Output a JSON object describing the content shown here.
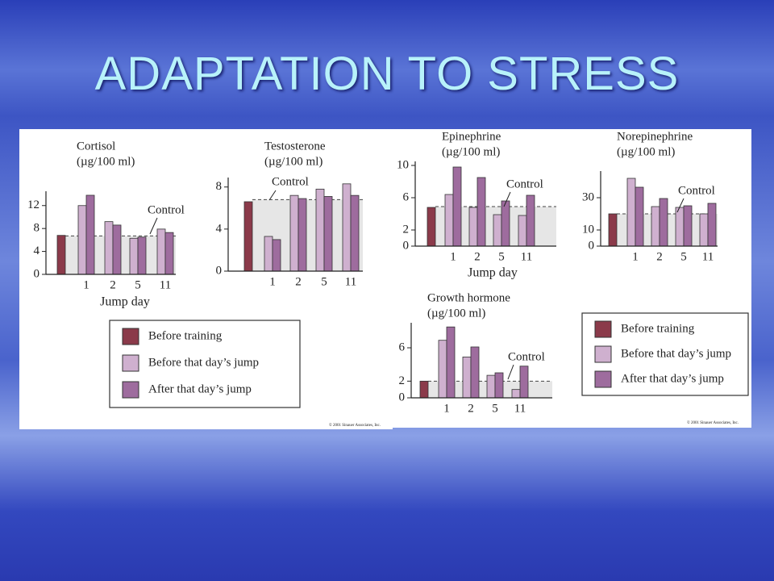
{
  "title": "ADAPTATION TO STRESS",
  "credits": [
    "© 2001 Sinauer Associates, Inc.",
    "© 2001 Sinauer Associates, Inc."
  ],
  "chart_data": [
    {
      "type": "bar",
      "title": "Cortisol",
      "subtitle": "(µg/100 ml)",
      "x_label": "Jump day",
      "legend": true,
      "categories": [
        null,
        "1",
        "2",
        "5",
        "11"
      ],
      "series": [
        {
          "name": "Before training",
          "color": "#8b3a4a",
          "values": [
            6.8,
            null,
            null,
            null,
            null
          ]
        },
        {
          "name": "Before that day’s jump",
          "color": "#cfb0cf",
          "values": [
            null,
            12,
            9.2,
            6.3,
            7.9
          ]
        },
        {
          "name": "After that day’s jump",
          "color": "#9e6c9e",
          "values": [
            null,
            13.8,
            8.6,
            6.5,
            7.3
          ]
        }
      ],
      "control": 6.7,
      "annotation": "Control",
      "ylim": [
        0,
        14.5
      ],
      "yticks": [
        0,
        4,
        8,
        12
      ]
    },
    {
      "type": "bar",
      "title": "Testosterone",
      "subtitle": "(µg/100 ml)",
      "categories": [
        null,
        "1",
        "2",
        "5",
        "11"
      ],
      "series": [
        {
          "color": "#8b3a4a",
          "values": [
            6.6,
            null,
            null,
            null,
            null
          ]
        },
        {
          "color": "#cfb0cf",
          "values": [
            null,
            3.3,
            7.2,
            7.8,
            8.3
          ]
        },
        {
          "color": "#9e6c9e",
          "values": [
            null,
            3.0,
            6.9,
            7.1,
            7.2
          ]
        }
      ],
      "control": 6.8,
      "annotation": "Control",
      "ylim": [
        0,
        8.9
      ],
      "yticks": [
        0,
        4,
        8
      ]
    },
    {
      "type": "bar",
      "title": "Epinephrine",
      "subtitle": "(µg/100 ml)",
      "x_label": "Jump day",
      "legend": true,
      "categories": [
        null,
        "1",
        "2",
        "5",
        "11"
      ],
      "series": [
        {
          "name": "Before training",
          "color": "#8b3a4a",
          "values": [
            4.8,
            null,
            null,
            null,
            null
          ]
        },
        {
          "name": "Before that day’s jump",
          "color": "#cfb0cf",
          "values": [
            null,
            6.4,
            4.8,
            3.9,
            3.8
          ]
        },
        {
          "name": "After that day’s jump",
          "color": "#9e6c9e",
          "values": [
            null,
            9.8,
            8.5,
            5.6,
            6.3
          ]
        }
      ],
      "control": 4.9,
      "annotation": "Control",
      "ylim": [
        0,
        10.5
      ],
      "yticks": [
        0,
        2,
        6,
        10
      ]
    },
    {
      "type": "bar",
      "title": "Norepinephrine",
      "subtitle": "(µg/100 ml)",
      "categories": [
        null,
        "1",
        "2",
        "5",
        "11"
      ],
      "series": [
        {
          "color": "#8b3a4a",
          "values": [
            20,
            null,
            null,
            null,
            null
          ]
        },
        {
          "color": "#cfb0cf",
          "values": [
            null,
            42,
            24.5,
            24,
            20
          ]
        },
        {
          "color": "#9e6c9e",
          "values": [
            null,
            36.5,
            29.5,
            25,
            26.5
          ]
        }
      ],
      "control": 20,
      "annotation": "Control",
      "ylim": [
        0,
        46.5
      ],
      "yticks": [
        0,
        10,
        30
      ]
    },
    {
      "type": "bar",
      "title": "Growth hormone",
      "subtitle": "(µg/100 ml)",
      "categories": [
        null,
        "1",
        "2",
        "5",
        "11"
      ],
      "series": [
        {
          "color": "#8b3a4a",
          "values": [
            2,
            null,
            null,
            null,
            null
          ]
        },
        {
          "color": "#cfb0cf",
          "values": [
            null,
            6.9,
            4.9,
            2.7,
            1
          ]
        },
        {
          "color": "#9e6c9e",
          "values": [
            null,
            8.5,
            6.1,
            3,
            3.8
          ]
        }
      ],
      "control": 2,
      "annotation": "Control",
      "ylim": [
        0,
        9
      ],
      "yticks": [
        0,
        2,
        6
      ]
    }
  ]
}
